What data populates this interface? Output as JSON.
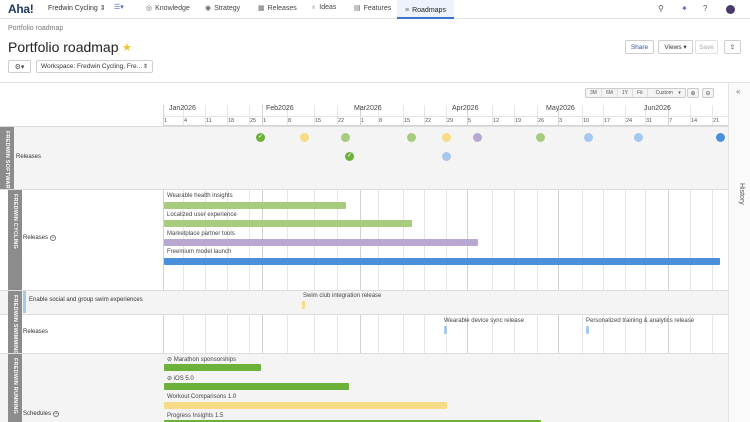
{
  "colors": {
    "green_check": "#6cb23a",
    "light_green": "#a8cc7e",
    "yellow": "#f6dc86",
    "purple": "#b8a7d1",
    "blue": "#4a8fdb",
    "light_blue": "#a6c8ee",
    "dark_green": "#6cb23a"
  },
  "nav": {
    "logo": "Aha!",
    "workspace": "Fredwin Cycling",
    "tabs": [
      {
        "label": "Knowledge",
        "icon": "knowledge-icon"
      },
      {
        "label": "Strategy",
        "icon": "strategy-icon"
      },
      {
        "label": "Releases",
        "icon": "releases-icon"
      },
      {
        "label": "Ideas",
        "icon": "ideas-icon"
      },
      {
        "label": "Features",
        "icon": "features-icon"
      },
      {
        "label": "Roadmaps",
        "icon": "roadmaps-icon"
      }
    ]
  },
  "page": {
    "breadcrumb": "Portfolio roadmap",
    "title": "Portfolio roadmap",
    "share": "Share",
    "views": "Views",
    "save": "Save",
    "workspace_select": "Workspace: Fredwin Cycling, Fre...",
    "history": "History"
  },
  "zoom": [
    "3M",
    "6M",
    "1Y",
    "Fit",
    "Custom"
  ],
  "timeline": {
    "months": [
      "Jan2026",
      "Feb2026",
      "Mar2026",
      "Apr2026",
      "May2026",
      "Jun2026"
    ],
    "weeks": [
      "1",
      "4",
      "11",
      "18",
      "25",
      "1",
      "8",
      "15",
      "22",
      "1",
      "8",
      "15",
      "22",
      "29",
      "5",
      "12",
      "19",
      "26",
      "3",
      "10",
      "17",
      "24",
      "31",
      "7",
      "14",
      "21"
    ]
  },
  "groups": {
    "software": {
      "label": "FREDWIN SOFTWARE",
      "row": "Releases"
    },
    "cycling": {
      "label": "FREDWIN CYCLING",
      "row": "Releases",
      "bars": [
        {
          "label": "Wearable health insights"
        },
        {
          "label": "Localized user experience"
        },
        {
          "label": "Marketplace partner tools"
        },
        {
          "label": "Freemium model launch"
        }
      ]
    },
    "swimming": {
      "label": "FREDWIN SWIMMING",
      "initiative": "Enable social and group swim experiences",
      "initiative_release": "Swim club integration release",
      "row": "Releases",
      "releases": [
        "Wearable device sync release",
        "Personalized training & analytics release"
      ]
    },
    "running": {
      "label": "FREDWIN RUNNING",
      "row": "Schedules",
      "bars": [
        {
          "label": "Marathon sponsorships"
        },
        {
          "label": "iOS 5.0"
        },
        {
          "label": "Workout Comparisons 1.0"
        },
        {
          "label": "Progress Insights 1.5"
        }
      ]
    }
  }
}
